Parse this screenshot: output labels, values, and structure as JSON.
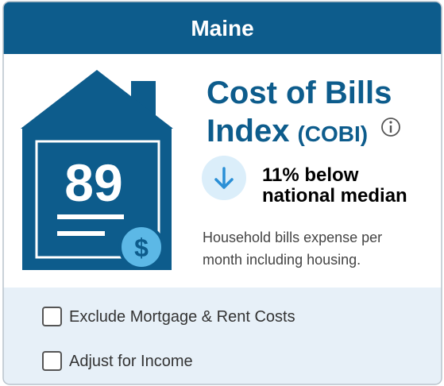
{
  "header": {
    "title": "Maine"
  },
  "index": {
    "score": 89,
    "title_line1": "Cost of Bills",
    "title_line2": "Index",
    "abbr": "(COBI)",
    "comparison_line1": "11% below",
    "comparison_line2": "national median",
    "description_line1": "Household bills expense per",
    "description_line2": "month including housing."
  },
  "options": [
    {
      "label": "Exclude Mortgage & Rent Costs"
    },
    {
      "label": "Adjust for Income"
    }
  ]
}
